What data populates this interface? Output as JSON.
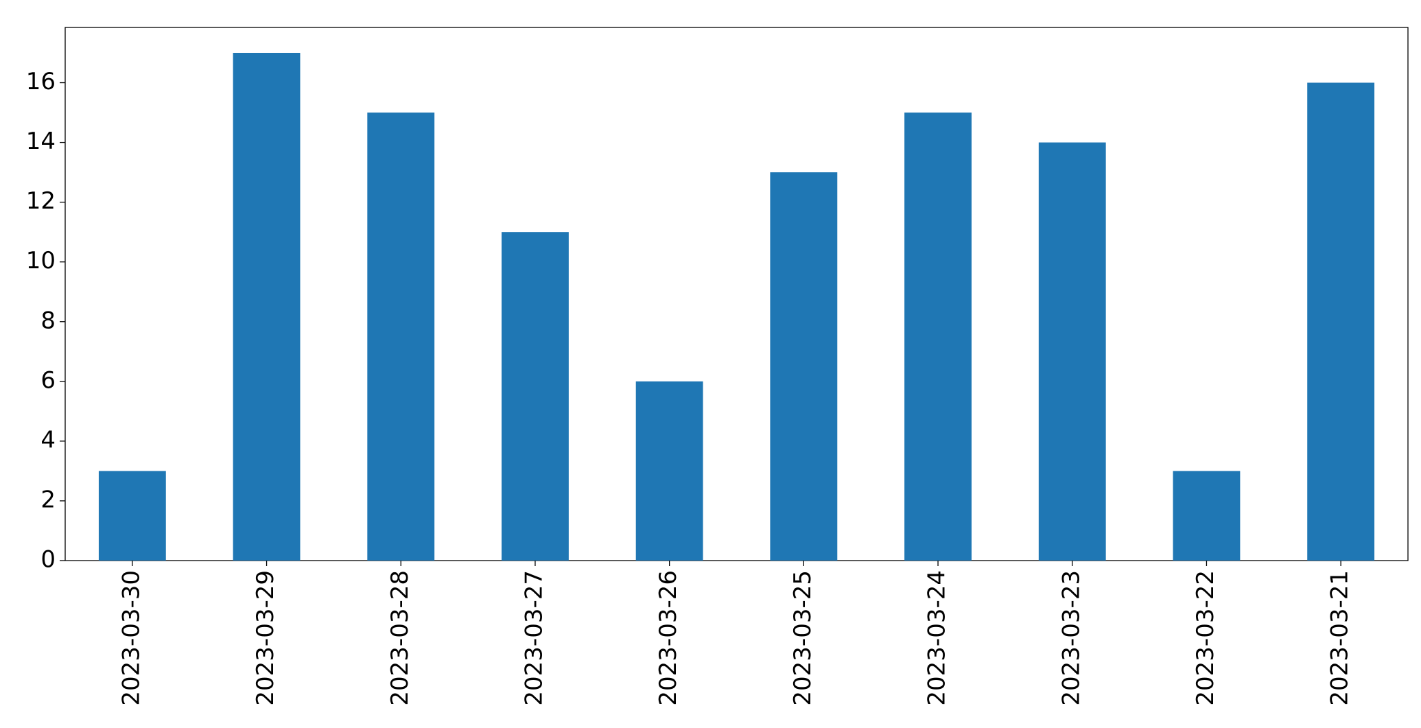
{
  "chart_data": {
    "type": "bar",
    "categories": [
      "2023-03-30",
      "2023-03-29",
      "2023-03-28",
      "2023-03-27",
      "2023-03-26",
      "2023-03-25",
      "2023-03-24",
      "2023-03-23",
      "2023-03-22",
      "2023-03-21"
    ],
    "values": [
      3,
      17,
      15,
      11,
      6,
      13,
      15,
      14,
      3,
      16
    ],
    "color": "#1f77b4",
    "ylim": [
      0,
      17.85
    ],
    "yticks": [
      0,
      2,
      4,
      6,
      8,
      10,
      12,
      14,
      16
    ],
    "grid": false
  }
}
